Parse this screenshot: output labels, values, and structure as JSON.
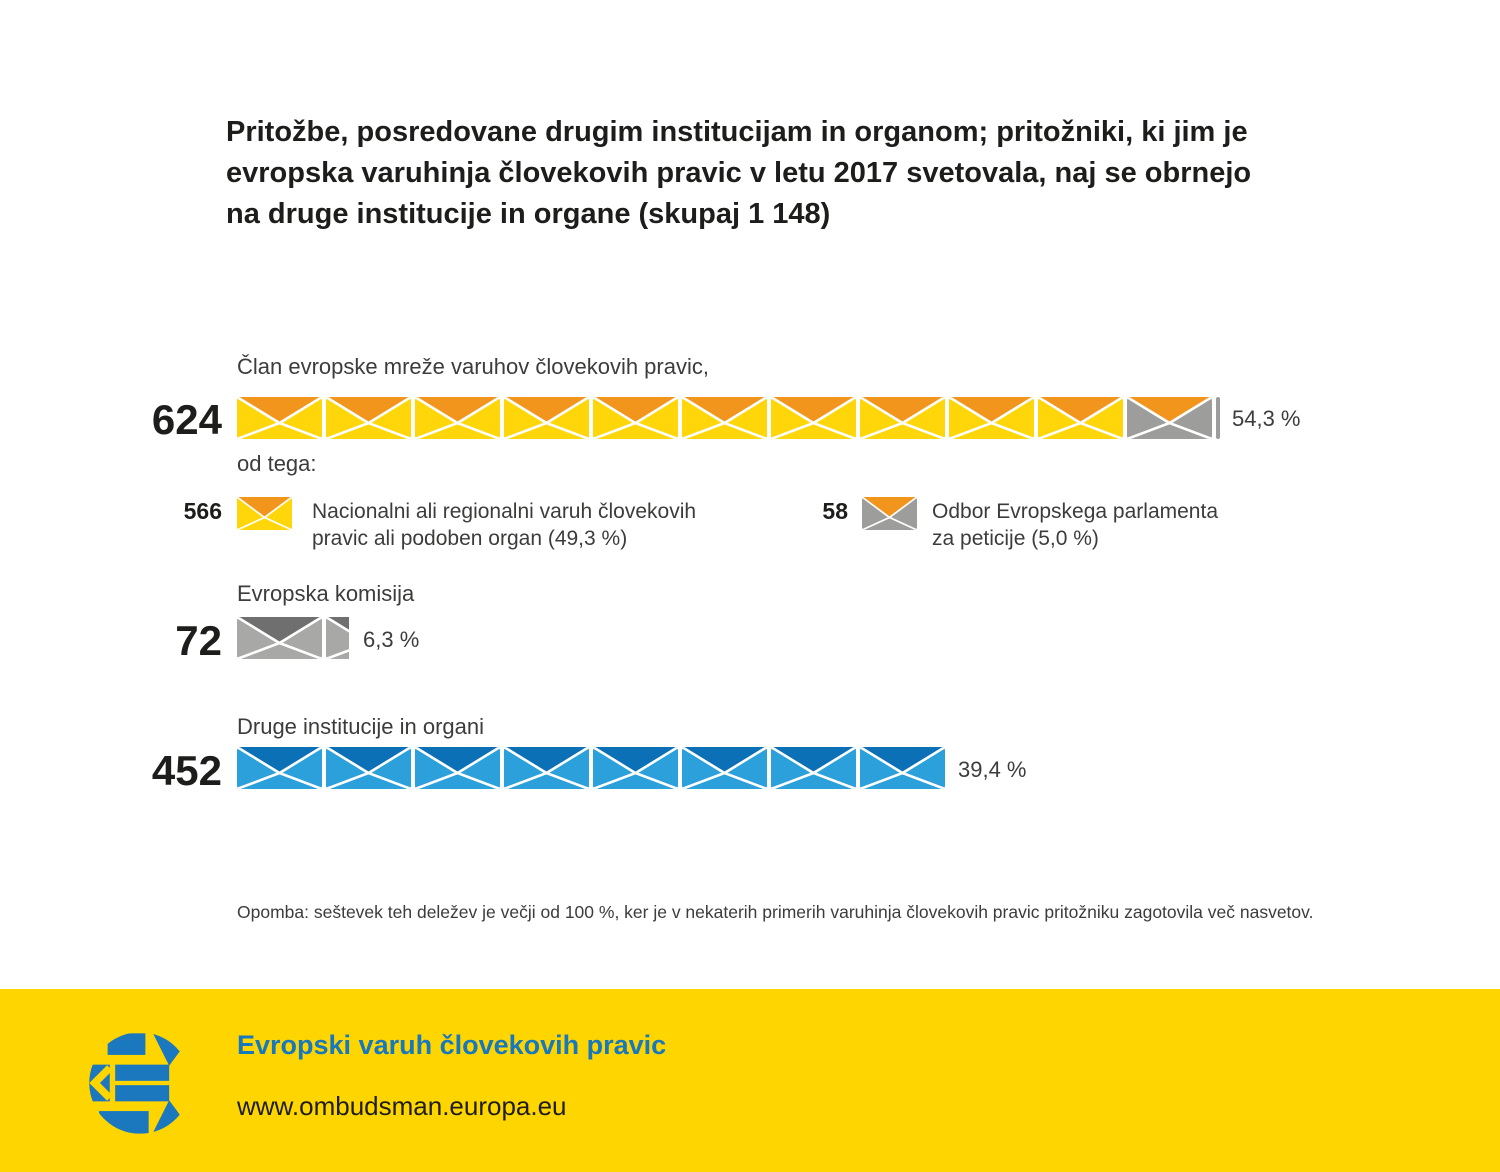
{
  "header": {
    "title": "Pritožbe, posredovane drugim institucijam in organom; pritožniki, ki jim je evropska varuhinja človekovih pravic v letu 2017 svetovala, naj se obrnejo na druge institucije in organe (skupaj 1 148)",
    "title_lines": [
      "Pritožbe, posredovane drugim institucijam in organom; pritožniki, ki jim je",
      "evropska varuhinja človekovih pravic v letu 2017 svetovala, naj se obrnejo",
      "na druge institucije in organe (skupaj 1 148)"
    ]
  },
  "colors": {
    "yellow_body": "#FFD60A",
    "orange_flap": "#F2951D",
    "gray_body": "#9D9D9C",
    "gray_light_body": "#A8A8A7",
    "gray_dark_flap": "#706F6F",
    "blue_body": "#2CA0DB",
    "blue_dark_flap": "#0B70B6",
    "footer_yellow": "#FFD500",
    "brand_blue": "#1778BE",
    "text_dark": "#1d1d1b",
    "text_gray": "#3c3c3b"
  },
  "chart": {
    "subnote_label": "od tega:",
    "rows": [
      {
        "key": "network",
        "label": "Član evropske mreže varuhov človekovih pravic,",
        "value": "624",
        "percent": "54,3 %",
        "segments": [
          {
            "type": "envelope",
            "icon": "envelope-icon",
            "body": "#FFD60A",
            "flap": "#F2951D",
            "count": 10
          },
          {
            "type": "envelope",
            "icon": "envelope-icon",
            "body": "#9D9D9C",
            "flap": "#F2951D",
            "count": 1
          },
          {
            "type": "sliver",
            "icon": "envelope-sliver",
            "color": "#9D9D9C",
            "width": 4
          }
        ]
      },
      {
        "key": "commission",
        "label": "Evropska komisija",
        "value": "72",
        "percent": "6,3 %",
        "segments": [
          {
            "type": "envelope",
            "icon": "envelope-icon",
            "body": "#A8A8A7",
            "flap": "#706F6F",
            "count": 1
          },
          {
            "type": "partial",
            "icon": "envelope-partial-icon",
            "body": "#A8A8A7",
            "flap": "#706F6F",
            "width": 23
          }
        ]
      },
      {
        "key": "other",
        "label": "Druge institucije in organi",
        "value": "452",
        "percent": "39,4 %",
        "segments": [
          {
            "type": "envelope",
            "icon": "envelope-icon",
            "body": "#2CA0DB",
            "flap": "#0B70B6",
            "count": 8
          }
        ]
      }
    ],
    "legend": [
      {
        "value": "566",
        "icon": "envelope-icon",
        "icon_body": "#FFD60A",
        "icon_flap": "#F2951D",
        "label": "Nacionalni ali regionalni varuh človekovih pravic ali podoben organ (49,3 %)"
      },
      {
        "value": "58",
        "icon": "envelope-icon",
        "icon_body": "#9D9D9C",
        "icon_flap": "#F2951D",
        "label": "Odbor Evropskega parlamenta za peticije (5,0 %)"
      }
    ]
  },
  "note": "Opomba: seštevek teh deležev je večji od 100 %, ker je v nekaterih primerih varuhinja človekovih pravic pritožniku zagotovila več nasvetov.",
  "footer": {
    "brand": "Evropski varuh človekovih pravic",
    "url": "www.ombudsman.europa.eu",
    "logo_icon": "european-ombudsman-logo"
  },
  "chart_data": {
    "type": "pictogram_bar",
    "title": "Pritožbe, posredovane drugim institucijam in organom; pritožniki, ki jim je evropska varuhinja človekovih pravic v letu 2017 svetovala, naj se obrnejo na druge institucije in organe (skupaj 1 148)",
    "total": 1148,
    "categories": [
      "Član evropske mreže varuhov človekovih pravic",
      "Evropska komisija",
      "Druge institucije in organi"
    ],
    "values": [
      624,
      72,
      452
    ],
    "percents": [
      54.3,
      6.3,
      39.4
    ],
    "breakdown_of_first_category": [
      {
        "label": "Nacionalni ali regionalni varuh človekovih pravic ali podoben organ",
        "value": 566,
        "percent": 49.3
      },
      {
        "label": "Odbor Evropskega parlamenta za peticije",
        "value": 58,
        "percent": 5.0
      }
    ],
    "note": "Opomba: seštevek teh deležev je večji od 100 %, ker je v nekaterih primerih varuhinja človekovih pravic pritožniku zagotovila več nasvetov.",
    "legend_position": "below first bar",
    "grid": false
  }
}
